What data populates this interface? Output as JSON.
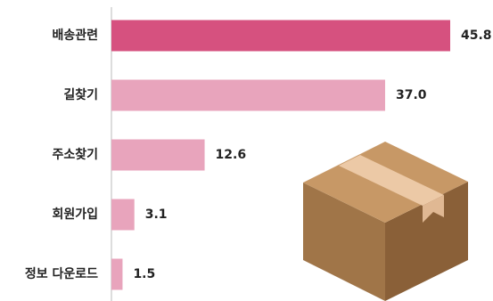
{
  "chart_data": {
    "type": "barh",
    "categories": [
      "배송관련",
      "길찾기",
      "주소찾기",
      "회원가입",
      "정보 다운로드"
    ],
    "values": [
      45.8,
      37.0,
      12.6,
      3.1,
      1.5
    ],
    "value_labels": [
      "45.8",
      "37.0",
      "12.6",
      "3.1",
      "1.5"
    ],
    "colors": [
      "#d6517f",
      "#e8a4bc",
      "#e8a4bc",
      "#e8a4bc",
      "#e8a4bc"
    ]
  }
}
